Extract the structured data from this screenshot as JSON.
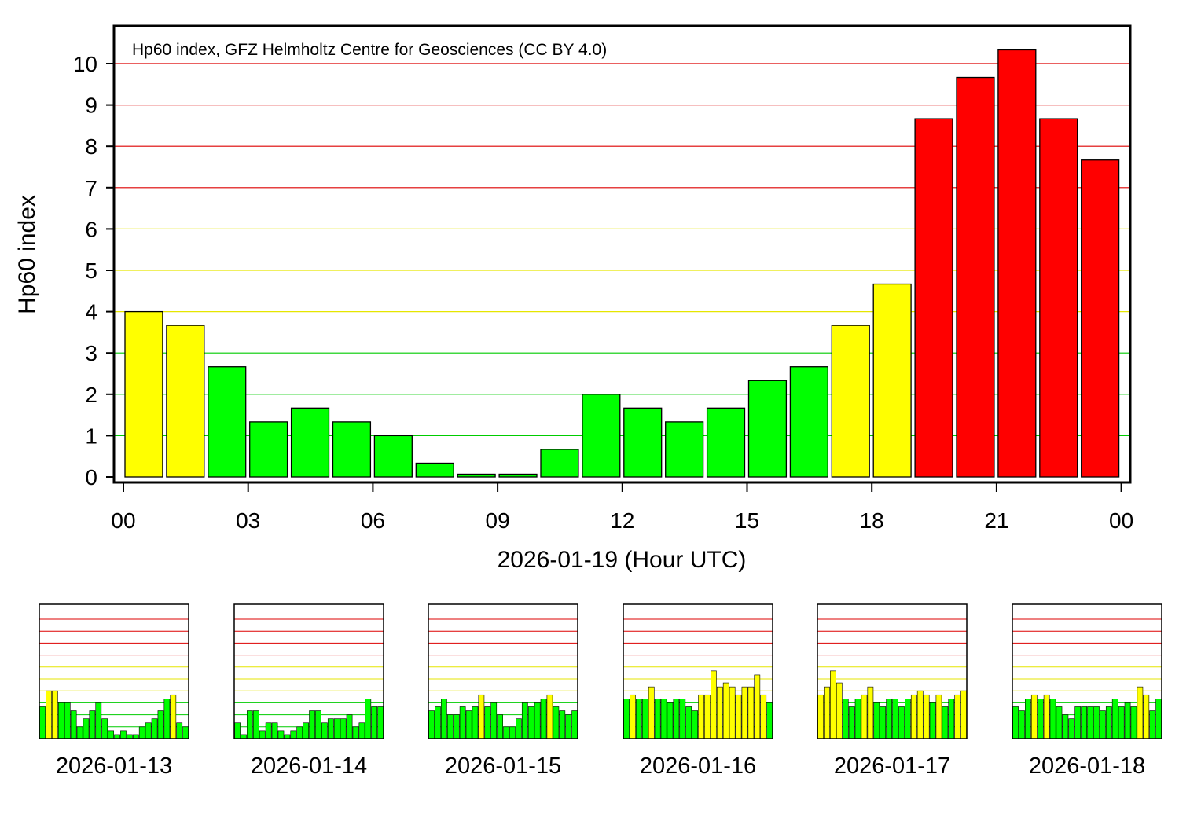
{
  "colors": {
    "low": "#00ff00",
    "mid": "#ffff00",
    "high": "#ff0000",
    "grid_low": "#00cc00",
    "grid_mid": "#e6e600",
    "grid_high": "#dd0000"
  },
  "chart_data": {
    "type": "bar",
    "annotation": "Hp60 index, GFZ Helmholtz Centre for Geosciences (CC BY 4.0)",
    "ylabel": "Hp60 index",
    "xlabel": "2026-01-19 (Hour UTC)",
    "ylim": [
      0,
      10.6
    ],
    "yticks": [
      "0",
      "1",
      "2",
      "3",
      "4",
      "5",
      "6",
      "7",
      "8",
      "9",
      "10"
    ],
    "xticks": [
      "00",
      "03",
      "06",
      "09",
      "12",
      "15",
      "18",
      "21",
      "00"
    ],
    "grid": true,
    "color_thresholds": {
      "mid_from": 3.34,
      "high_from": 7.0
    },
    "values": [
      4.0,
      3.667,
      2.667,
      1.333,
      1.667,
      1.333,
      1.0,
      0.333,
      0.067,
      0.067,
      0.667,
      2.0,
      1.667,
      1.333,
      1.667,
      2.333,
      2.667,
      3.667,
      4.667,
      8.667,
      9.667,
      10.333,
      8.667,
      7.667
    ]
  },
  "previous_days": [
    {
      "label": "2026-01-13",
      "values": [
        2.667,
        4.0,
        4.0,
        3.0,
        3.0,
        2.333,
        1.0,
        1.667,
        2.333,
        3.0,
        1.667,
        0.667,
        0.333,
        0.667,
        0.333,
        0.333,
        1.0,
        1.333,
        1.667,
        2.333,
        3.333,
        3.667,
        1.333,
        1.0
      ]
    },
    {
      "label": "2026-01-14",
      "values": [
        1.333,
        0.333,
        2.333,
        2.333,
        0.667,
        1.333,
        1.333,
        0.667,
        0.333,
        0.667,
        1.0,
        1.333,
        2.333,
        2.333,
        1.333,
        1.667,
        1.667,
        1.667,
        2.0,
        1.0,
        1.333,
        3.333,
        2.667,
        2.667
      ]
    },
    {
      "label": "2026-01-15",
      "values": [
        2.333,
        2.667,
        3.333,
        2.0,
        2.0,
        2.667,
        2.333,
        2.667,
        3.667,
        2.667,
        3.0,
        2.0,
        1.0,
        1.0,
        1.667,
        3.0,
        2.667,
        3.0,
        3.333,
        3.667,
        2.667,
        2.333,
        2.0,
        2.333
      ]
    },
    {
      "label": "2026-01-16",
      "values": [
        3.333,
        3.667,
        3.333,
        3.333,
        4.333,
        3.333,
        3.333,
        3.0,
        3.333,
        3.333,
        2.667,
        2.333,
        3.667,
        3.667,
        5.667,
        4.333,
        4.667,
        4.333,
        3.667,
        4.333,
        4.333,
        5.333,
        3.667,
        3.0
      ]
    },
    {
      "label": "2026-01-17",
      "values": [
        3.667,
        4.333,
        5.667,
        4.667,
        3.333,
        2.667,
        3.333,
        3.667,
        4.333,
        3.0,
        2.667,
        3.333,
        3.333,
        2.667,
        3.333,
        3.667,
        4.0,
        3.667,
        3.0,
        3.667,
        2.667,
        3.333,
        3.667,
        4.0
      ]
    },
    {
      "label": "2026-01-18",
      "values": [
        2.667,
        2.333,
        3.333,
        3.667,
        3.333,
        3.667,
        3.333,
        2.667,
        2.0,
        1.667,
        2.667,
        2.667,
        2.667,
        2.667,
        2.333,
        2.667,
        3.333,
        2.667,
        3.0,
        2.667,
        4.333,
        3.667,
        2.333,
        3.333
      ]
    }
  ]
}
